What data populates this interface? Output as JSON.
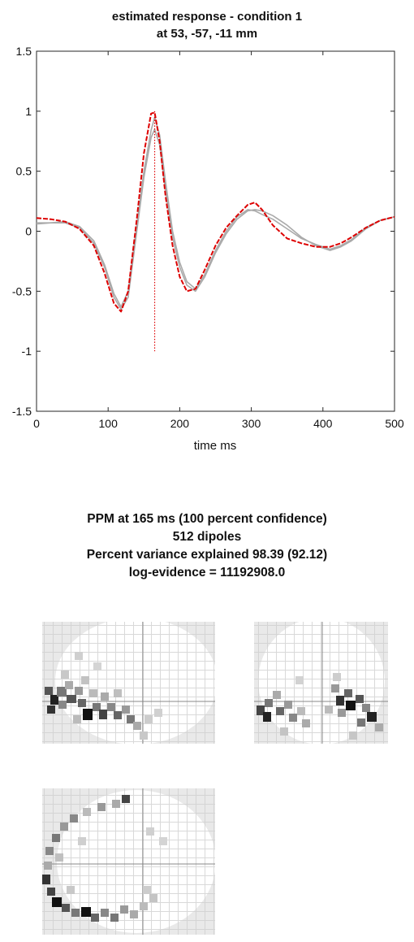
{
  "chart_data": {
    "type": "line",
    "title": "estimated response - condition 1",
    "subtitle": "at 53, -57, -11 mm",
    "xlabel": "time  ms",
    "ylabel": "",
    "xlim": [
      0,
      500
    ],
    "ylim": [
      -1.5,
      1.5
    ],
    "xticks": [
      "0",
      "100",
      "200",
      "300",
      "400",
      "500"
    ],
    "yticks": [
      "1.5",
      "1",
      "0.5",
      "0",
      "-0.5",
      "-1",
      "-1.5"
    ],
    "grid": false,
    "colors": {
      "red": "#dd0000",
      "gray": "#aaaaaa"
    },
    "series": [
      {
        "style": "red",
        "x": [
          0,
          20,
          40,
          60,
          80,
          95,
          108,
          118,
          128,
          140,
          150,
          160,
          165,
          172,
          180,
          190,
          200,
          210,
          222,
          235,
          250,
          265,
          280,
          295,
          305,
          315,
          330,
          350,
          370,
          390,
          410,
          425,
          440,
          460,
          480,
          500
        ],
        "y": [
          0.11,
          0.1,
          0.08,
          0.02,
          -0.12,
          -0.35,
          -0.6,
          -0.67,
          -0.5,
          0.1,
          0.65,
          0.98,
          0.99,
          0.75,
          0.3,
          -0.12,
          -0.38,
          -0.5,
          -0.48,
          -0.32,
          -0.12,
          0.03,
          0.13,
          0.22,
          0.24,
          0.18,
          0.05,
          -0.06,
          -0.1,
          -0.13,
          -0.13,
          -0.1,
          -0.05,
          0.03,
          0.09,
          0.12
        ]
      },
      {
        "style": "gray",
        "x": [
          0,
          20,
          40,
          60,
          80,
          95,
          108,
          118,
          128,
          140,
          150,
          160,
          165,
          172,
          180,
          190,
          200,
          210,
          222,
          235,
          250,
          265,
          280,
          295,
          305,
          315,
          330,
          350,
          370,
          390,
          410,
          425,
          440,
          460,
          480,
          500
        ],
        "y": [
          0.07,
          0.07,
          0.07,
          0.03,
          -0.1,
          -0.3,
          -0.55,
          -0.65,
          -0.55,
          0.0,
          0.45,
          0.78,
          0.85,
          0.72,
          0.35,
          -0.05,
          -0.3,
          -0.45,
          -0.5,
          -0.38,
          -0.18,
          -0.02,
          0.1,
          0.17,
          0.18,
          0.17,
          0.13,
          0.05,
          -0.05,
          -0.12,
          -0.16,
          -0.13,
          -0.08,
          0.02,
          0.09,
          0.12
        ]
      },
      {
        "style": "gray",
        "x": [
          0,
          20,
          40,
          60,
          80,
          95,
          108,
          118,
          128,
          140,
          150,
          160,
          165,
          172,
          180,
          190,
          200,
          210,
          222,
          235,
          250,
          265,
          280,
          295,
          305,
          315,
          330,
          350,
          370,
          390,
          410,
          425,
          440,
          460,
          480,
          500
        ],
        "y": [
          0.06,
          0.07,
          0.08,
          0.04,
          -0.08,
          -0.28,
          -0.52,
          -0.63,
          -0.5,
          0.05,
          0.5,
          0.84,
          0.95,
          0.8,
          0.42,
          0.0,
          -0.26,
          -0.42,
          -0.48,
          -0.36,
          -0.16,
          0.0,
          0.12,
          0.18,
          0.17,
          0.14,
          0.1,
          0.02,
          -0.06,
          -0.11,
          -0.15,
          -0.12,
          -0.07,
          0.03,
          0.09,
          0.12
        ]
      }
    ],
    "marker_time": 165,
    "marker_range": [
      -1,
      1
    ]
  },
  "ppm": {
    "line1": "PPM at 165 ms (100 percent confidence)",
    "line2": "512 dipoles",
    "line3": "Percent variance explained 98.39 (92.12)",
    "line4": "log-evidence = 11192908.0"
  }
}
